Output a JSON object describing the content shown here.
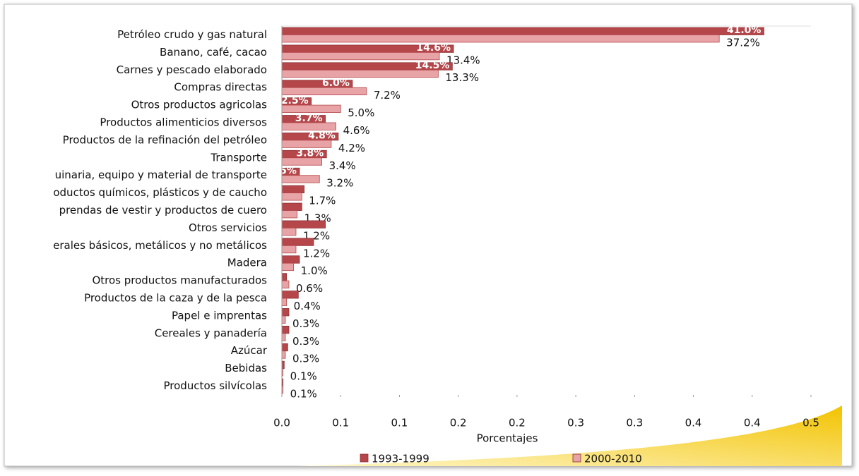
{
  "chart_data": {
    "type": "bar",
    "orientation": "horizontal",
    "categories": [
      "Petróleo crudo y gas natural",
      "Banano, café, cacao",
      "Carnes y pescado elaborado",
      "Compras directas",
      "Otros productos agricolas",
      "Productos alimenticios diversos",
      "Productos de la refinación del petróleo",
      "Transporte",
      "uinaria, equipo y material de transporte",
      "oductos químicos, plásticos y de caucho",
      "prendas de vestir y productos de cuero",
      "Otros servicios",
      "erales básicos, metálicos y no metálicos",
      "Madera",
      "Otros productos manufacturados",
      "Productos de la caza y de la pesca",
      "Papel e imprentas",
      "Cereales y panadería",
      "Azúcar",
      "Bebidas",
      "Productos silvícolas"
    ],
    "series": [
      {
        "name": "1993-1999",
        "color": "#b5474b",
        "values": [
          0.41,
          0.146,
          0.145,
          0.06,
          0.025,
          0.037,
          0.048,
          0.038,
          0.015,
          0.019,
          0.017,
          0.037,
          0.027,
          0.015,
          0.004,
          0.014,
          0.006,
          0.006,
          0.005,
          0.002,
          0.001
        ],
        "value_labels": [
          "41.0%",
          "14.6%",
          "14.5%",
          "6.0%",
          "2.5%",
          "3.7%",
          "4.8%",
          "3.8%",
          "1.5%",
          null,
          null,
          null,
          null,
          null,
          null,
          null,
          null,
          null,
          null,
          null,
          null
        ]
      },
      {
        "name": "2000-2010",
        "color": "#e8a3a6",
        "values": [
          0.372,
          0.134,
          0.133,
          0.072,
          0.05,
          0.046,
          0.042,
          0.034,
          0.032,
          0.017,
          0.013,
          0.012,
          0.012,
          0.01,
          0.006,
          0.004,
          0.003,
          0.003,
          0.003,
          0.001,
          0.001
        ],
        "value_labels": [
          "37.2%",
          "13.4%",
          "13.3%",
          "7.2%",
          "5.0%",
          "4.6%",
          "4.2%",
          "3.4%",
          "3.2%",
          "1.7%",
          "1.3%",
          "1.2%",
          "1.2%",
          "1.0%",
          "0.6%",
          "0.4%",
          "0.3%",
          "0.3%",
          "0.3%",
          "0.1%",
          "0.1%"
        ]
      }
    ],
    "xlabel": "Porcentajes",
    "xlim": [
      0,
      0.45
    ],
    "xticks": [
      {
        "value": 0,
        "label": "0.0"
      },
      {
        "value": 0.05,
        "label": "0.1"
      },
      0.1,
      {
        "value": 0.15,
        "label": "0.2"
      },
      0.2,
      {
        "value": 0.25,
        "label": "0.3"
      },
      0.3,
      {
        "value": 0.35,
        "label": "0.4"
      },
      0.4,
      {
        "value": 0.45,
        "label": "0.5"
      }
    ],
    "legend": "bottom"
  }
}
